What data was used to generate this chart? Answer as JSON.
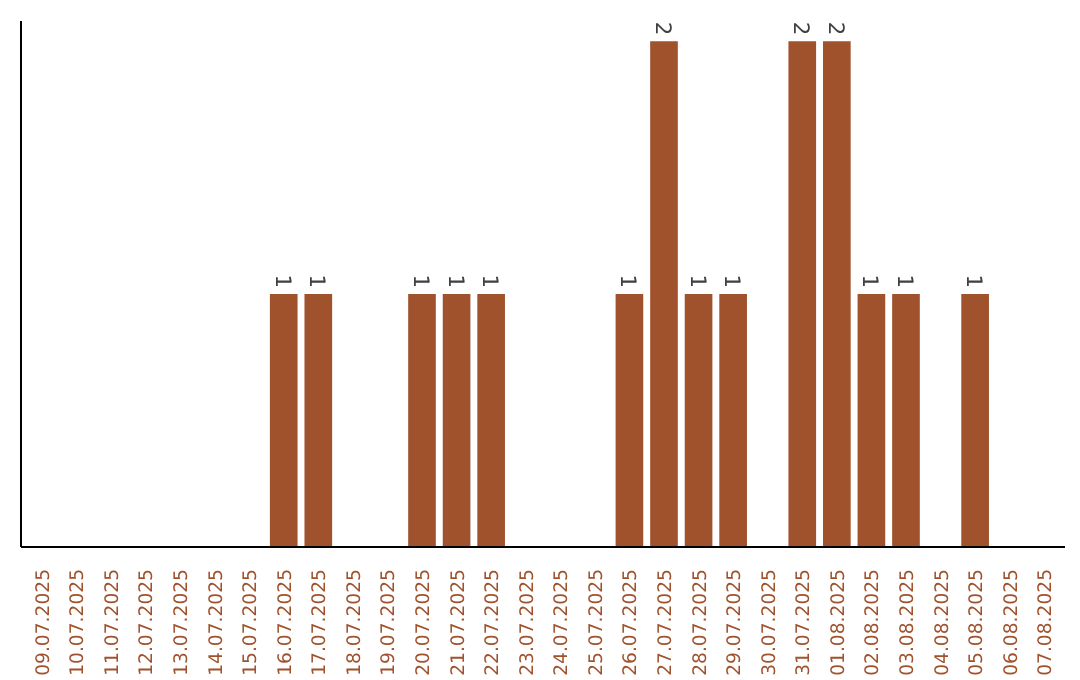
{
  "chart_data": {
    "type": "bar",
    "categories": [
      "09.07.2025",
      "10.07.2025",
      "11.07.2025",
      "12.07.2025",
      "13.07.2025",
      "14.07.2025",
      "15.07.2025",
      "16.07.2025",
      "17.07.2025",
      "18.07.2025",
      "19.07.2025",
      "20.07.2025",
      "21.07.2025",
      "22.07.2025",
      "23.07.2025",
      "24.07.2025",
      "25.07.2025",
      "26.07.2025",
      "27.07.2025",
      "28.07.2025",
      "29.07.2025",
      "30.07.2025",
      "31.07.2025",
      "01.08.2025",
      "02.08.2025",
      "03.08.2025",
      "04.08.2025",
      "05.08.2025",
      "06.08.2025",
      "07.08.2025"
    ],
    "values": [
      0,
      0,
      0,
      0,
      0,
      0,
      0,
      1,
      1,
      0,
      0,
      1,
      1,
      1,
      0,
      0,
      0,
      1,
      2,
      1,
      1,
      0,
      2,
      2,
      1,
      1,
      0,
      1,
      0,
      0
    ],
    "value_labels": [
      null,
      null,
      null,
      null,
      null,
      null,
      null,
      "1",
      "1",
      null,
      null,
      "1",
      "1",
      "1",
      null,
      null,
      null,
      "1",
      "2",
      "1",
      "1",
      null,
      "2",
      "2",
      "1",
      "1",
      null,
      "1",
      null,
      null
    ],
    "color": "#a0522d",
    "ylim": [
      0,
      2.08
    ],
    "tick_labels": "x",
    "grid": false
  }
}
